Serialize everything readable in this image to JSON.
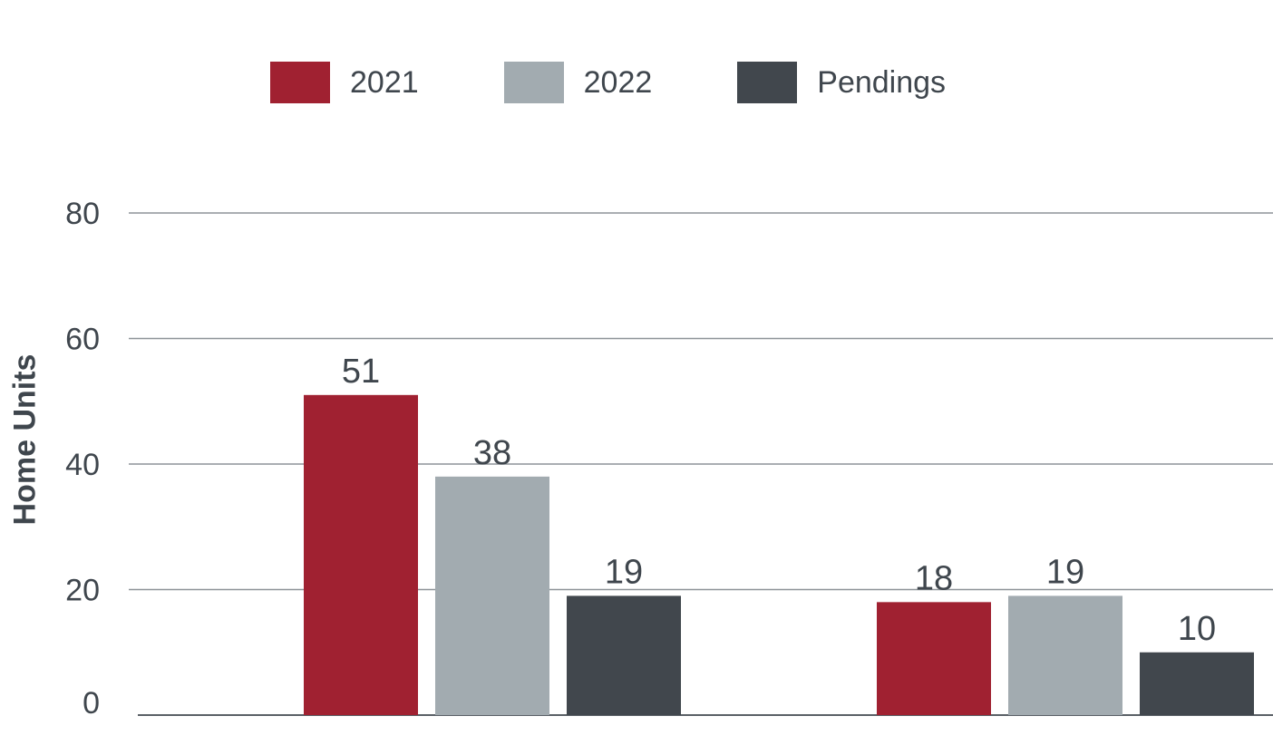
{
  "chart_data": {
    "type": "bar",
    "title": "",
    "xlabel": "",
    "ylabel": "Home Units",
    "ylim": [
      0,
      80
    ],
    "yticks": [
      0,
      20,
      40,
      60,
      80
    ],
    "grid": true,
    "legend_position": "top",
    "categories": [
      "",
      ""
    ],
    "series": [
      {
        "name": "2021",
        "color": "#a02131",
        "values": [
          51,
          18
        ]
      },
      {
        "name": "2022",
        "color": "#a2abb0",
        "values": [
          38,
          19
        ]
      },
      {
        "name": "Pendings",
        "color": "#41474d",
        "values": [
          19,
          10
        ]
      }
    ]
  }
}
